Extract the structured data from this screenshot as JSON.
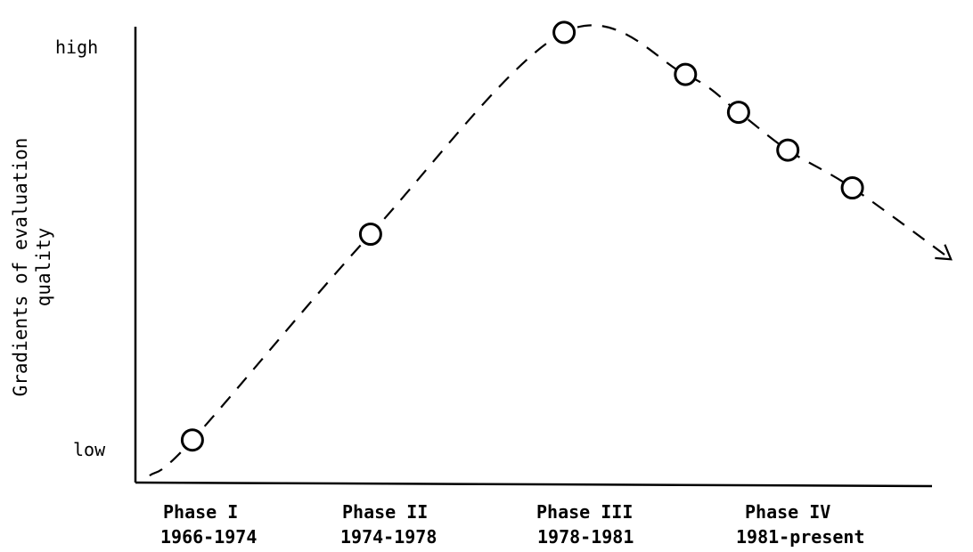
{
  "chart_data": {
    "type": "line",
    "ylabel": [
      "Gradients of evaluation",
      "quality"
    ],
    "xlabel": "",
    "y_ticks": [
      "high",
      "low"
    ],
    "phases": [
      {
        "name": "Phase I",
        "years": "1966-1974"
      },
      {
        "name": "Phase II",
        "years": "1974-1978"
      },
      {
        "name": "Phase III",
        "years": "1978-1981"
      },
      {
        "name": "Phase IV",
        "years": "1981-present"
      }
    ],
    "xlim": [
      1966,
      1987
    ],
    "ylim": [
      0,
      1
    ],
    "points": [
      {
        "x": 1967.5,
        "y": 0.08
      },
      {
        "x": 1972.2,
        "y": 0.57
      },
      {
        "x": 1977.3,
        "y": 1.05
      },
      {
        "x": 1980.5,
        "y": 0.95
      },
      {
        "x": 1981.9,
        "y": 0.86
      },
      {
        "x": 1983.2,
        "y": 0.77
      },
      {
        "x": 1984.9,
        "y": 0.68
      }
    ],
    "trend_end": {
      "x": 1987.5,
      "y": 0.51
    },
    "grid": false,
    "legend": "none"
  }
}
